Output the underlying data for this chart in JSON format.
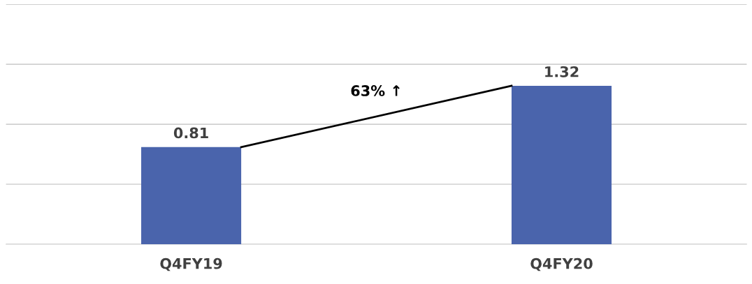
{
  "chart_data": {
    "type": "bar",
    "categories": [
      "Q4FY19",
      "Q4FY20"
    ],
    "series": [
      {
        "color": "#4a64ac",
        "values": [
          0.81,
          1.32
        ]
      }
    ],
    "ylim": [
      0,
      2
    ],
    "yticks": [
      {
        "value": 0,
        "label": null
      },
      {
        "value": 0.5,
        "label": null
      },
      {
        "value": 1,
        "label": null
      },
      {
        "value": 1.5,
        "label": null
      },
      {
        "value": 2,
        "label": null
      }
    ],
    "tick_labels": "x",
    "grid": "y",
    "data_labels": true,
    "annotations": [
      "63% ↑"
    ]
  }
}
